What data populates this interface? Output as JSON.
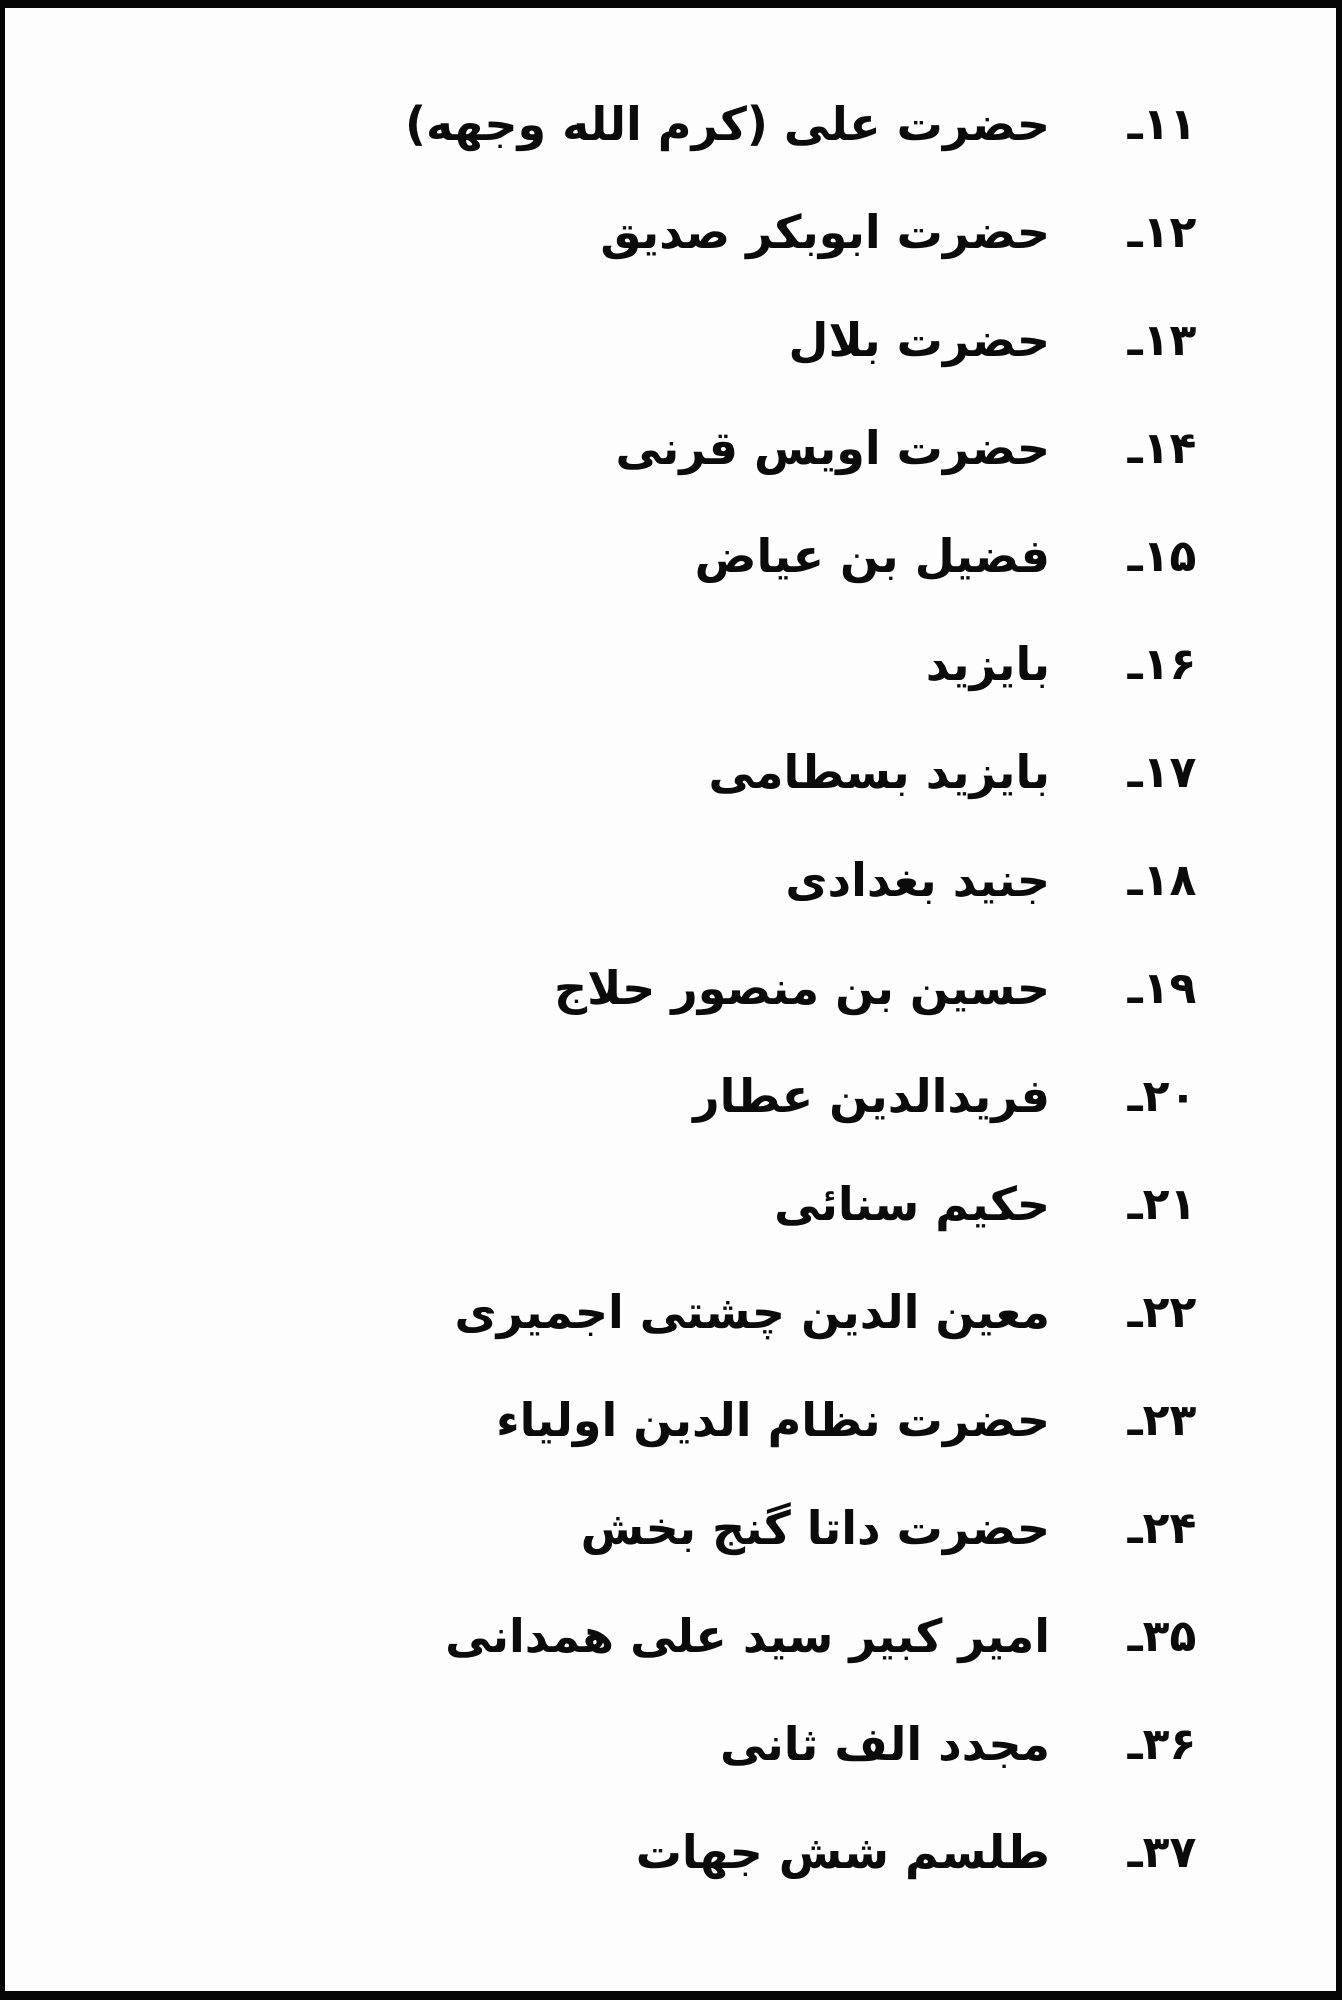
{
  "list": {
    "entries": [
      {
        "number": "۱۱ـ",
        "name": "حضرت علی (کرم الله وجهه)"
      },
      {
        "number": "۱۲ـ",
        "name": "حضرت ابوبکر صدیق"
      },
      {
        "number": "۱۳ـ",
        "name": "حضرت بلال"
      },
      {
        "number": "۱۴ـ",
        "name": "حضرت اویس قرنی"
      },
      {
        "number": "۱۵ـ",
        "name": "فضیل بن عیاض"
      },
      {
        "number": "۱۶ـ",
        "name": "بایزید"
      },
      {
        "number": "۱۷ـ",
        "name": "بایزید بسطامی"
      },
      {
        "number": "۱۸ـ",
        "name": "جنید بغدادی"
      },
      {
        "number": "۱۹ـ",
        "name": "حسین بن منصور حلاج"
      },
      {
        "number": "۲۰ـ",
        "name": "فریدالدین عطار"
      },
      {
        "number": "۲۱ـ",
        "name": "حکیم سنائی"
      },
      {
        "number": "۲۲ـ",
        "name": "معین الدین چشتی اجمیری"
      },
      {
        "number": "۲۳ـ",
        "name": "حضرت نظام الدین اولیاء"
      },
      {
        "number": "۲۴ـ",
        "name": "حضرت داتا گنج بخش"
      },
      {
        "number": "۳۵ـ",
        "name": "امیر کبیر سید علی همدانی"
      },
      {
        "number": "۳۶ـ",
        "name": "مجدد الف ثانی"
      },
      {
        "number": "۳۷ـ",
        "name": "طلسم شش جهات"
      }
    ]
  }
}
